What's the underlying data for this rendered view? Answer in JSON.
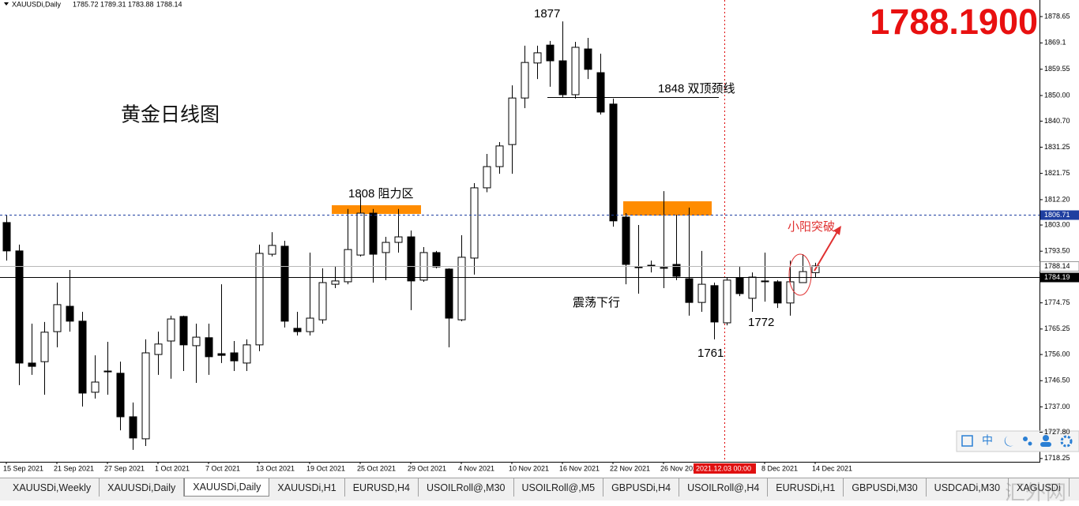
{
  "chart_data": {
    "type": "candlestick",
    "symbol": "XAUUSDi,Daily",
    "price_display": "1788.1900",
    "title": "黄金日线图",
    "annotations": {
      "high": "1877",
      "neckline": "1848 双顶颈线",
      "resistance": "1808 阻力区",
      "trend": "震荡下行",
      "low1": "1761",
      "low2": "1772",
      "breakout": "小阳突破"
    },
    "crosshair_label": "2021.12.03 00:00",
    "levels": [
      {
        "value": 1806.71,
        "color": "#1f3fa0",
        "style": "dashed"
      },
      {
        "value": 1784.19,
        "color": "#000000",
        "style": "solid"
      }
    ],
    "categories": [
      "15 Sep 2021",
      null,
      null,
      null,
      "21 Sep 2021",
      null,
      null,
      null,
      "27 Sep 2021",
      null,
      null,
      null,
      "1 Oct 2021",
      null,
      null,
      null,
      "7 Oct 2021",
      null,
      null,
      null,
      "13 Oct 2021",
      null,
      null,
      null,
      "19 Oct 2021",
      null,
      null,
      null,
      "25 Oct 2021",
      null,
      null,
      null,
      "29 Oct 2021",
      null,
      null,
      null,
      "4 Nov 2021",
      null,
      null,
      null,
      "10 Nov 2021",
      null,
      null,
      null,
      "16 Nov 2021",
      null,
      null,
      null,
      "22 Nov 2021",
      null,
      null,
      null,
      "26 Nov 2021",
      null,
      null,
      null,
      null,
      null,
      null,
      null,
      "8 Dec 2021",
      null,
      null,
      null,
      "14 Dec 2021"
    ],
    "open": [
      1803.9,
      1793.6,
      1752.9,
      1753.4,
      1764.3,
      1773.5,
      1768.1,
      1742.3,
      1750.0,
      1749.2,
      1733.4,
      1725.4,
      1756.0,
      1760.9,
      1769.8,
      1759.2,
      1762.1,
      1756.3,
      1756.6,
      1752.9,
      1759.5,
      1792.4,
      1795.3,
      1765.5,
      1764.3,
      1768.6,
      1781.5,
      1782.4,
      1792.1,
      1807.3,
      1793.0,
      1796.7,
      1798.7,
      1783.0,
      1793.0,
      1787.0,
      1768.6,
      1791.0,
      1816.5,
      1824.2,
      1832.2,
      1849.1,
      1861.8,
      1868.3,
      1862.6,
      1850.3,
      1866.9,
      1858.3,
      1846.9,
      1805.9,
      1787.8,
      1788.4,
      1787.6,
      1788.7,
      1783.5,
      1774.9,
      1781.0,
      1767.5,
      1783.8,
      1776.4,
      1782.7,
      1782.4,
      1774.7,
      1782.1,
      1785.72
    ],
    "high": [
      1806.7,
      1795.9,
      1767.2,
      1767.8,
      1782.1,
      1786.7,
      1771.5,
      1755.7,
      1760.6,
      1753.4,
      1738.6,
      1761.5,
      1764.3,
      1770.1,
      1770.1,
      1767.2,
      1767.2,
      1781.5,
      1760.9,
      1761.5,
      1795.9,
      1800.4,
      1797.3,
      1771.5,
      1793.0,
      1787.3,
      1788.1,
      1808.8,
      1813.9,
      1808.8,
      1798.7,
      1808.8,
      1801.0,
      1795.0,
      1793.6,
      1787.3,
      1799.3,
      1818.2,
      1828.8,
      1833.1,
      1853.7,
      1868.1,
      1868.1,
      1869.8,
      1876.9,
      1869.5,
      1870.9,
      1865.2,
      1848.9,
      1807.3,
      1803.0,
      1790.1,
      1815.3,
      1806.7,
      1809.3,
      1793.6,
      1782.1,
      1783.8,
      1787.8,
      1785.8,
      1793.0,
      1783.0,
      1790.1,
      1792.4,
      1789.31
    ],
    "low": [
      1790.1,
      1744.9,
      1748.6,
      1741.4,
      1758.6,
      1764.3,
      1737.1,
      1740.0,
      1741.4,
      1728.5,
      1721.4,
      1722.8,
      1748.6,
      1747.2,
      1750.0,
      1745.7,
      1748.6,
      1752.9,
      1750.0,
      1750.0,
      1757.2,
      1791.6,
      1765.8,
      1762.9,
      1762.9,
      1767.2,
      1780.1,
      1781.5,
      1791.6,
      1782.1,
      1783.0,
      1793.0,
      1772.1,
      1782.4,
      1787.3,
      1758.6,
      1768.1,
      1785.0,
      1814.9,
      1821.6,
      1821.6,
      1845.4,
      1856.0,
      1853.2,
      1849.4,
      1848.9,
      1856.0,
      1843.1,
      1802.4,
      1781.5,
      1778.1,
      1785.8,
      1780.1,
      1783.0,
      1770.1,
      1771.5,
      1761.5,
      1766.6,
      1777.2,
      1771.5,
      1775.2,
      1772.9,
      1770.1,
      1782.1,
      1783.88
    ],
    "close": [
      1793.6,
      1752.9,
      1751.7,
      1764.1,
      1774.1,
      1768.1,
      1742.0,
      1746.0,
      1749.7,
      1733.4,
      1725.7,
      1756.6,
      1759.8,
      1768.9,
      1759.5,
      1762.3,
      1755.2,
      1755.7,
      1753.7,
      1759.5,
      1792.7,
      1795.6,
      1768.1,
      1764.3,
      1769.2,
      1782.1,
      1782.7,
      1794.1,
      1807.3,
      1792.4,
      1796.7,
      1798.7,
      1782.7,
      1793.0,
      1787.8,
      1769.2,
      1791.3,
      1816.5,
      1824.2,
      1831.7,
      1849.1,
      1862.0,
      1865.5,
      1862.6,
      1850.3,
      1867.5,
      1859.5,
      1844.0,
      1804.5,
      1788.7,
      1787.6,
      1788.1,
      1787.3,
      1784.4,
      1774.9,
      1781.5,
      1767.8,
      1783.0,
      1778.1,
      1784.1,
      1782.4,
      1774.7,
      1782.4,
      1786.1,
      1788.14
    ],
    "ylim": [
      1717.06,
      1884.67
    ],
    "yticks": [
      1878.65,
      1869.1,
      1859.55,
      {
        "value": 1850,
        "label": "1850.00"
      },
      {
        "value": 1840.7,
        "label": "1840.70"
      },
      1831.25,
      1821.75,
      {
        "value": 1812.2,
        "label": "1812.20"
      },
      {
        "value": 1803,
        "label": "1803.00"
      },
      {
        "value": 1793.5,
        "label": "1793.50"
      },
      1774.75,
      1765.25,
      {
        "value": 1756,
        "label": "1756.00"
      },
      {
        "value": 1746.5,
        "label": "1746.50"
      },
      {
        "value": 1737,
        "label": "1737.00"
      },
      {
        "value": 1727.8,
        "label": "1727.80"
      },
      1718.25
    ],
    "grid": false
  },
  "toolbar": {
    "lang": "中"
  },
  "tabs": [
    "XAUUSDi,Weekly",
    "XAUUSDi,Daily",
    "XAUUSDi,Daily",
    "XAUUSDi,H1",
    "EURUSD,H4",
    "USOILRoll@,M30",
    "USOILRoll@,M5",
    "GBPUSDi,H4",
    "USOILRoll@,H4",
    "EURUSDi,H1",
    "GBPUSDi,M30",
    "USDCADi,M30",
    "XAGUSDi"
  ],
  "active_tab": 2,
  "watermark": "汇外网"
}
